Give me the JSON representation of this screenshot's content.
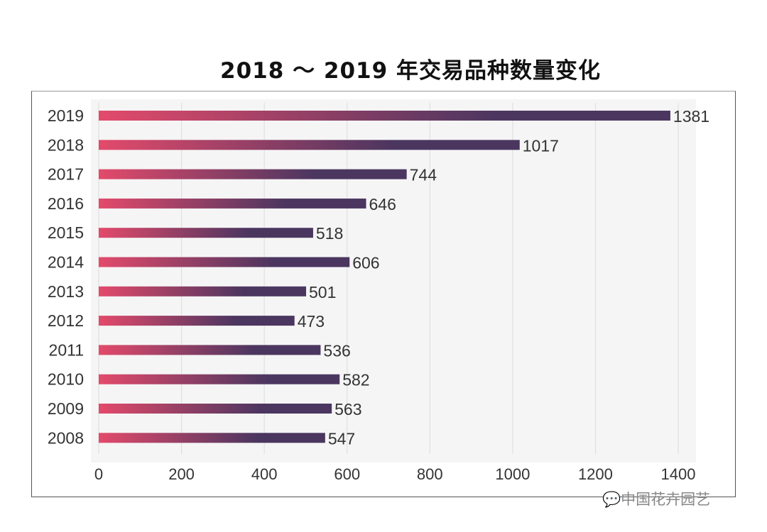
{
  "chart_data": {
    "type": "bar",
    "orientation": "horizontal",
    "title": "2018 ～ 2019 年交易品种数量变化",
    "categories": [
      "2019",
      "2018",
      "2017",
      "2016",
      "2015",
      "2014",
      "2013",
      "2012",
      "2011",
      "2010",
      "2009",
      "2008"
    ],
    "values": [
      1381,
      1017,
      744,
      646,
      518,
      606,
      501,
      473,
      536,
      582,
      563,
      547
    ],
    "xlim": [
      0,
      1400
    ],
    "xticks": [
      "0",
      "200",
      "400",
      "600",
      "800",
      "1000",
      "1200",
      "1400"
    ],
    "grid": true,
    "data_labels": true,
    "colors": {
      "bar_start": "#e34a6b",
      "bar_end": "#4b3660",
      "plot_bg": "#f5f5f5",
      "grid": "#dcdcdc"
    }
  },
  "watermark": "中国花卉园艺"
}
